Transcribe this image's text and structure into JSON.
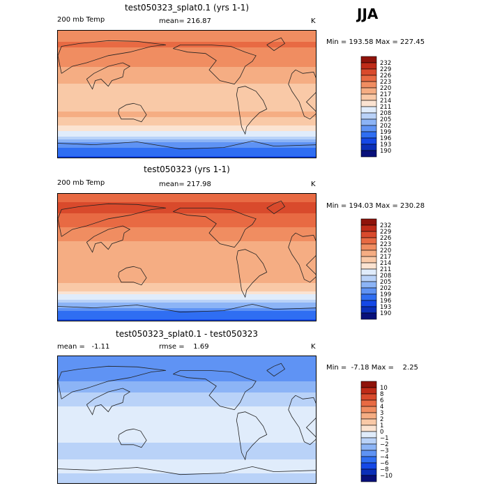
{
  "season": "JJA",
  "colors": {
    "abs_scale": [
      "#08107a",
      "#0b2fb8",
      "#1548e6",
      "#2f6ef2",
      "#5f93f4",
      "#8cb4f6",
      "#b9d2f8",
      "#e0ecfb",
      "#fbe3d1",
      "#f9c9a7",
      "#f5ad83",
      "#f08d61",
      "#e86a43",
      "#d94a2c",
      "#bf2b18",
      "#8f130a"
    ],
    "diff_scale": [
      "#08107a",
      "#0b2fb8",
      "#1548e6",
      "#2f6ef2",
      "#5f93f4",
      "#8cb4f6",
      "#b9d2f8",
      "#e0ecfb",
      "#fbe3d1",
      "#f9c9a7",
      "#f5ad83",
      "#f08d61",
      "#e86a43",
      "#d94a2c",
      "#bf2b18",
      "#8f130a"
    ]
  },
  "chart_data": [
    {
      "type": "heatmap",
      "title": "test050323_splat0.1 (yrs 1-1)",
      "variable": "200 mb Temp",
      "mean_text": "mean= 216.87",
      "units": "K",
      "minmax_text": "Min = 193.58 Max = 227.45",
      "min": 193.58,
      "max": 227.45,
      "colorbar_labels": [
        "232",
        "229",
        "226",
        "223",
        "220",
        "217",
        "214",
        "211",
        "208",
        "205",
        "202",
        "199",
        "196",
        "193",
        "190"
      ],
      "levels": [
        190,
        193,
        196,
        199,
        202,
        205,
        208,
        211,
        214,
        217,
        220,
        223,
        226,
        229,
        232
      ],
      "lat_profile": [
        {
          "lat": 90,
          "value": 220.5
        },
        {
          "lat": 70,
          "value": 223.5
        },
        {
          "lat": 50,
          "value": 221.0
        },
        {
          "lat": 30,
          "value": 219.0
        },
        {
          "lat": 10,
          "value": 216.5
        },
        {
          "lat": -10,
          "value": 216.0
        },
        {
          "lat": -30,
          "value": 217.5
        },
        {
          "lat": -45,
          "value": 213.0
        },
        {
          "lat": -60,
          "value": 207.0
        },
        {
          "lat": -75,
          "value": 198.0
        },
        {
          "lat": -90,
          "value": 195.0
        }
      ]
    },
    {
      "type": "heatmap",
      "title": "test050323 (yrs 1-1)",
      "variable": "200 mb Temp",
      "mean_text": "mean= 217.98",
      "units": "K",
      "minmax_text": "Min = 194.03 Max = 230.28",
      "min": 194.03,
      "max": 230.28,
      "colorbar_labels": [
        "232",
        "229",
        "226",
        "223",
        "220",
        "217",
        "214",
        "211",
        "208",
        "205",
        "202",
        "199",
        "196",
        "193",
        "190"
      ],
      "levels": [
        190,
        193,
        196,
        199,
        202,
        205,
        208,
        211,
        214,
        217,
        220,
        223,
        226,
        229,
        232
      ],
      "lat_profile": [
        {
          "lat": 90,
          "value": 224.0
        },
        {
          "lat": 70,
          "value": 227.0
        },
        {
          "lat": 50,
          "value": 224.0
        },
        {
          "lat": 30,
          "value": 221.0
        },
        {
          "lat": 10,
          "value": 218.0
        },
        {
          "lat": -10,
          "value": 217.0
        },
        {
          "lat": -30,
          "value": 218.5
        },
        {
          "lat": -45,
          "value": 214.0
        },
        {
          "lat": -60,
          "value": 207.5
        },
        {
          "lat": -75,
          "value": 199.0
        },
        {
          "lat": -90,
          "value": 195.5
        }
      ]
    },
    {
      "type": "heatmap",
      "title": "test050323_splat0.1 - test050323",
      "mean_text": "mean =   -1.11",
      "rmse_text": "rmse =    1.69",
      "units": "K",
      "minmax_text": "Min =  -7.18 Max =    2.25",
      "min": -7.18,
      "max": 2.25,
      "colorbar_labels": [
        "10",
        "8",
        "6",
        "4",
        "3",
        "2",
        "1",
        "0",
        "−1",
        "−2",
        "−3",
        "−4",
        "−6",
        "−8",
        "−10"
      ],
      "levels": [
        -10,
        -8,
        -6,
        -4,
        -3,
        -2,
        -1,
        0,
        1,
        2,
        3,
        4,
        6,
        8,
        10
      ],
      "lat_profile": [
        {
          "lat": 90,
          "value": -3.0
        },
        {
          "lat": 70,
          "value": -4.0
        },
        {
          "lat": 50,
          "value": -2.5
        },
        {
          "lat": 30,
          "value": -1.5
        },
        {
          "lat": 10,
          "value": -0.5
        },
        {
          "lat": -10,
          "value": -0.5
        },
        {
          "lat": -30,
          "value": -1.0
        },
        {
          "lat": -45,
          "value": -2.0
        },
        {
          "lat": -60,
          "value": -0.5
        },
        {
          "lat": -75,
          "value": -1.0
        },
        {
          "lat": -90,
          "value": -1.5
        }
      ]
    }
  ]
}
